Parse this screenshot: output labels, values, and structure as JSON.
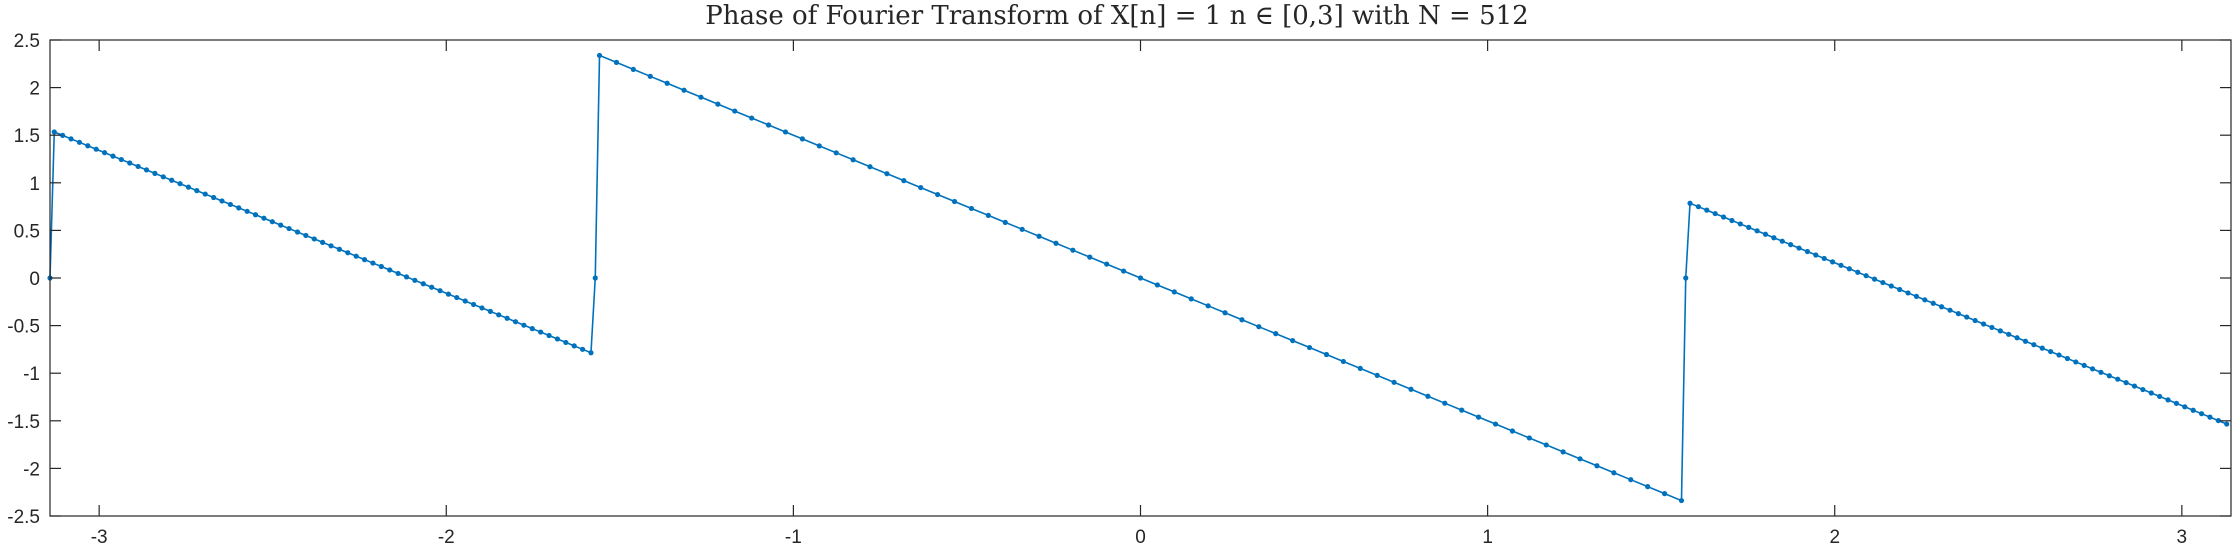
{
  "chart_data": {
    "type": "line",
    "title": "Phase of Fourier Transform of X[n] = 1  n ∈ [0,3] with N =  512",
    "xlabel": "",
    "ylabel": "",
    "xlim": [
      -3.1416,
      3.1416
    ],
    "ylim": [
      -2.5,
      2.5
    ],
    "xticks": [
      -3,
      -2,
      -1,
      0,
      1,
      2,
      3
    ],
    "yticks": [
      -2.5,
      -2,
      -1.5,
      -1,
      -0.5,
      0,
      0.5,
      1,
      1.5,
      2,
      2.5
    ],
    "xtick_labels": [
      "-3",
      "-2",
      "-1",
      "0",
      "1",
      "2",
      "3"
    ],
    "ytick_labels": [
      "-2.5",
      "-2",
      "-1.5",
      "-1",
      "-0.5",
      "0",
      "0.5",
      "1",
      "1.5",
      "2",
      "2.5"
    ],
    "grid": false,
    "legend": "none",
    "series": [
      {
        "color": "#0072BD",
        "marker": "dot",
        "N": 512,
        "samples_per_segment": 64,
        "points": [
          [
            -3.1416,
            0
          ],
          [
            -3.1293,
            1.534
          ],
          [
            -1.5831,
            -0.7854
          ],
          [
            -1.5708,
            0
          ],
          [
            -1.5585,
            2.3378
          ],
          [
            1.5585,
            -2.3378
          ],
          [
            1.5708,
            0
          ],
          [
            1.5831,
            0.7854
          ],
          [
            3.1293,
            -1.534
          ]
        ]
      }
    ]
  }
}
